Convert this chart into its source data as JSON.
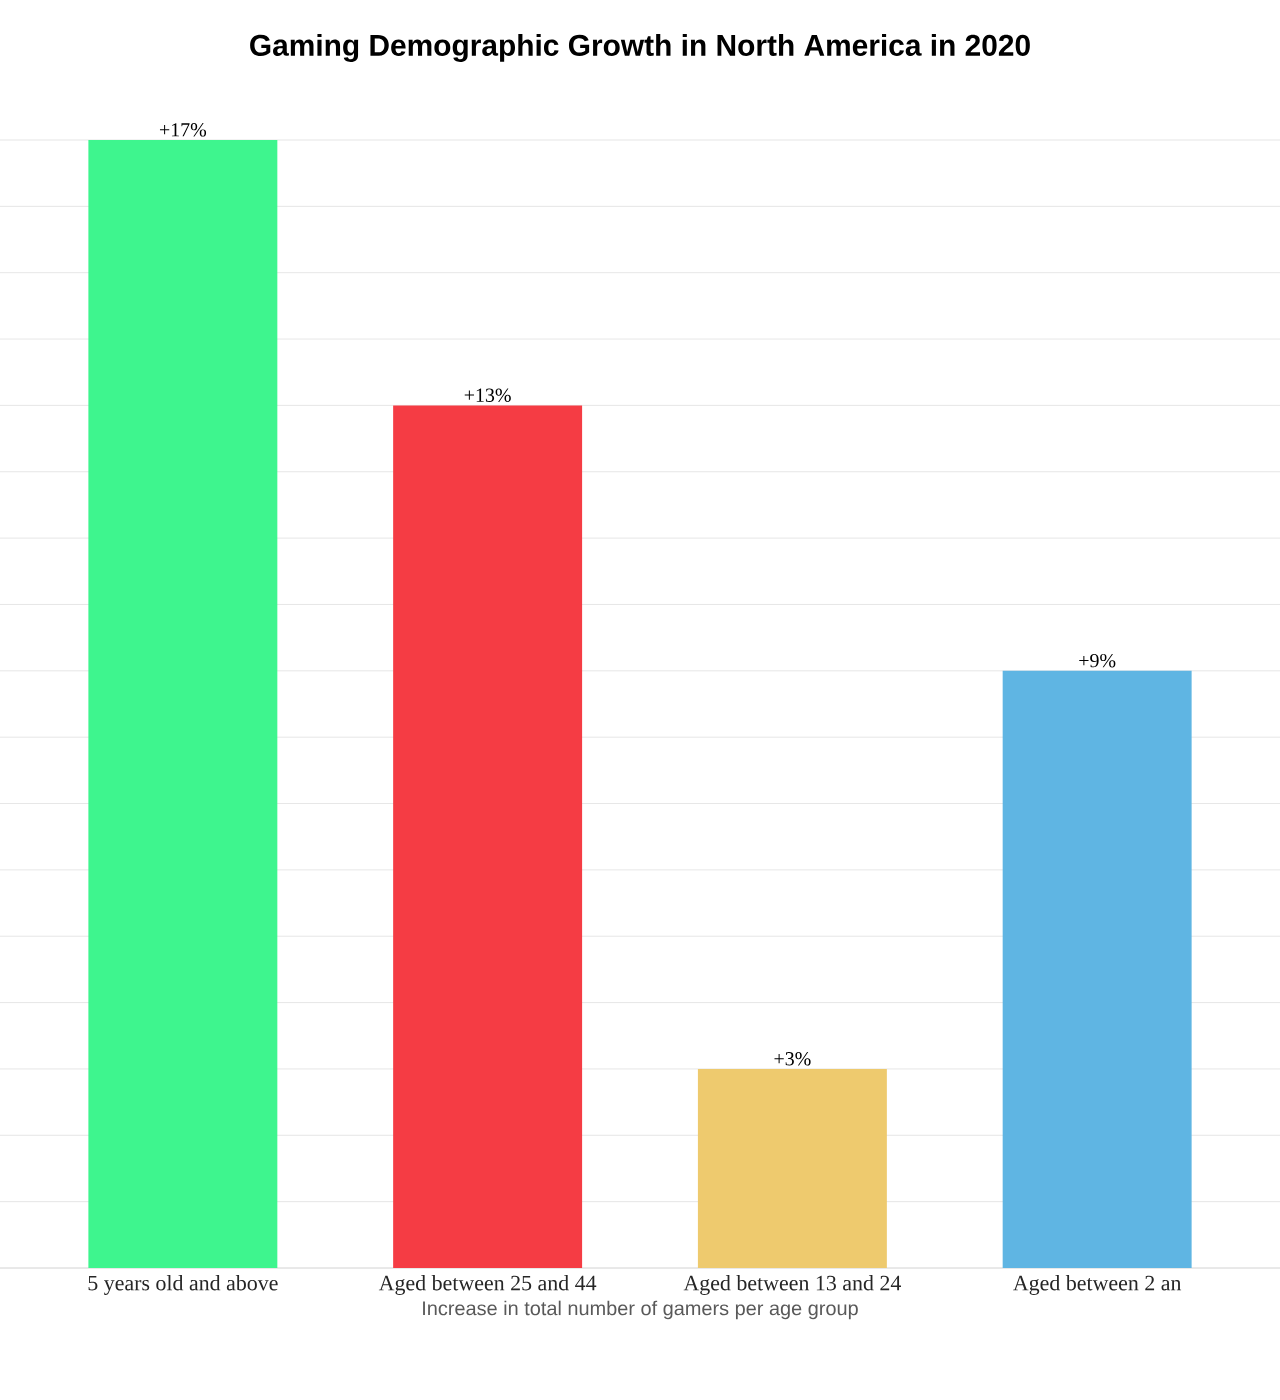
{
  "chart_data": {
    "type": "bar",
    "title": "Gaming Demographic Growth in North America in 2020",
    "xlabel": "Increase in total number of gamers per age group",
    "categories": [
      "5 years old and above",
      "Aged between 25 and 44",
      "Aged between 13 and 24",
      "Aged between 2 an"
    ],
    "values": [
      17,
      13,
      3,
      9
    ],
    "value_labels": [
      "+17%",
      "+13%",
      "+3%",
      "+9%"
    ],
    "colors": [
      "#3ef58e",
      "#f53c44",
      "#eeca6e",
      "#5fb5e3"
    ],
    "grid": "y",
    "tick_labels": "x"
  }
}
